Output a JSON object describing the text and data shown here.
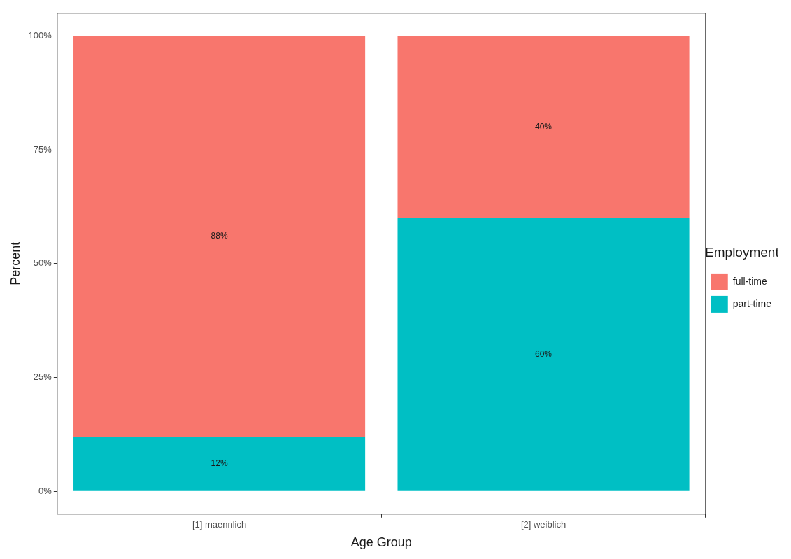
{
  "chart_data": {
    "type": "bar",
    "stacked": true,
    "xlabel": "Age Group",
    "ylabel": "Percent",
    "legend_title": "Employment",
    "legend": "right",
    "categories": [
      "[1] maennlich",
      "[2] weiblich"
    ],
    "series": [
      {
        "name": "part-time",
        "color": "#00bfc4",
        "values": [
          12,
          60
        ],
        "value_labels": [
          "12%",
          "60%"
        ]
      },
      {
        "name": "full-time",
        "color": "#f8766d",
        "values": [
          88,
          40
        ],
        "value_labels": [
          "88%",
          "40%"
        ]
      }
    ],
    "ylim": [
      -5,
      105
    ],
    "yticks": [
      {
        "value": 0,
        "label": "0%"
      },
      {
        "value": 25,
        "label": "25%"
      },
      {
        "value": 50,
        "label": "50%"
      },
      {
        "value": 75,
        "label": "75%"
      },
      {
        "value": 100,
        "label": "100%"
      }
    ],
    "grid": false
  }
}
